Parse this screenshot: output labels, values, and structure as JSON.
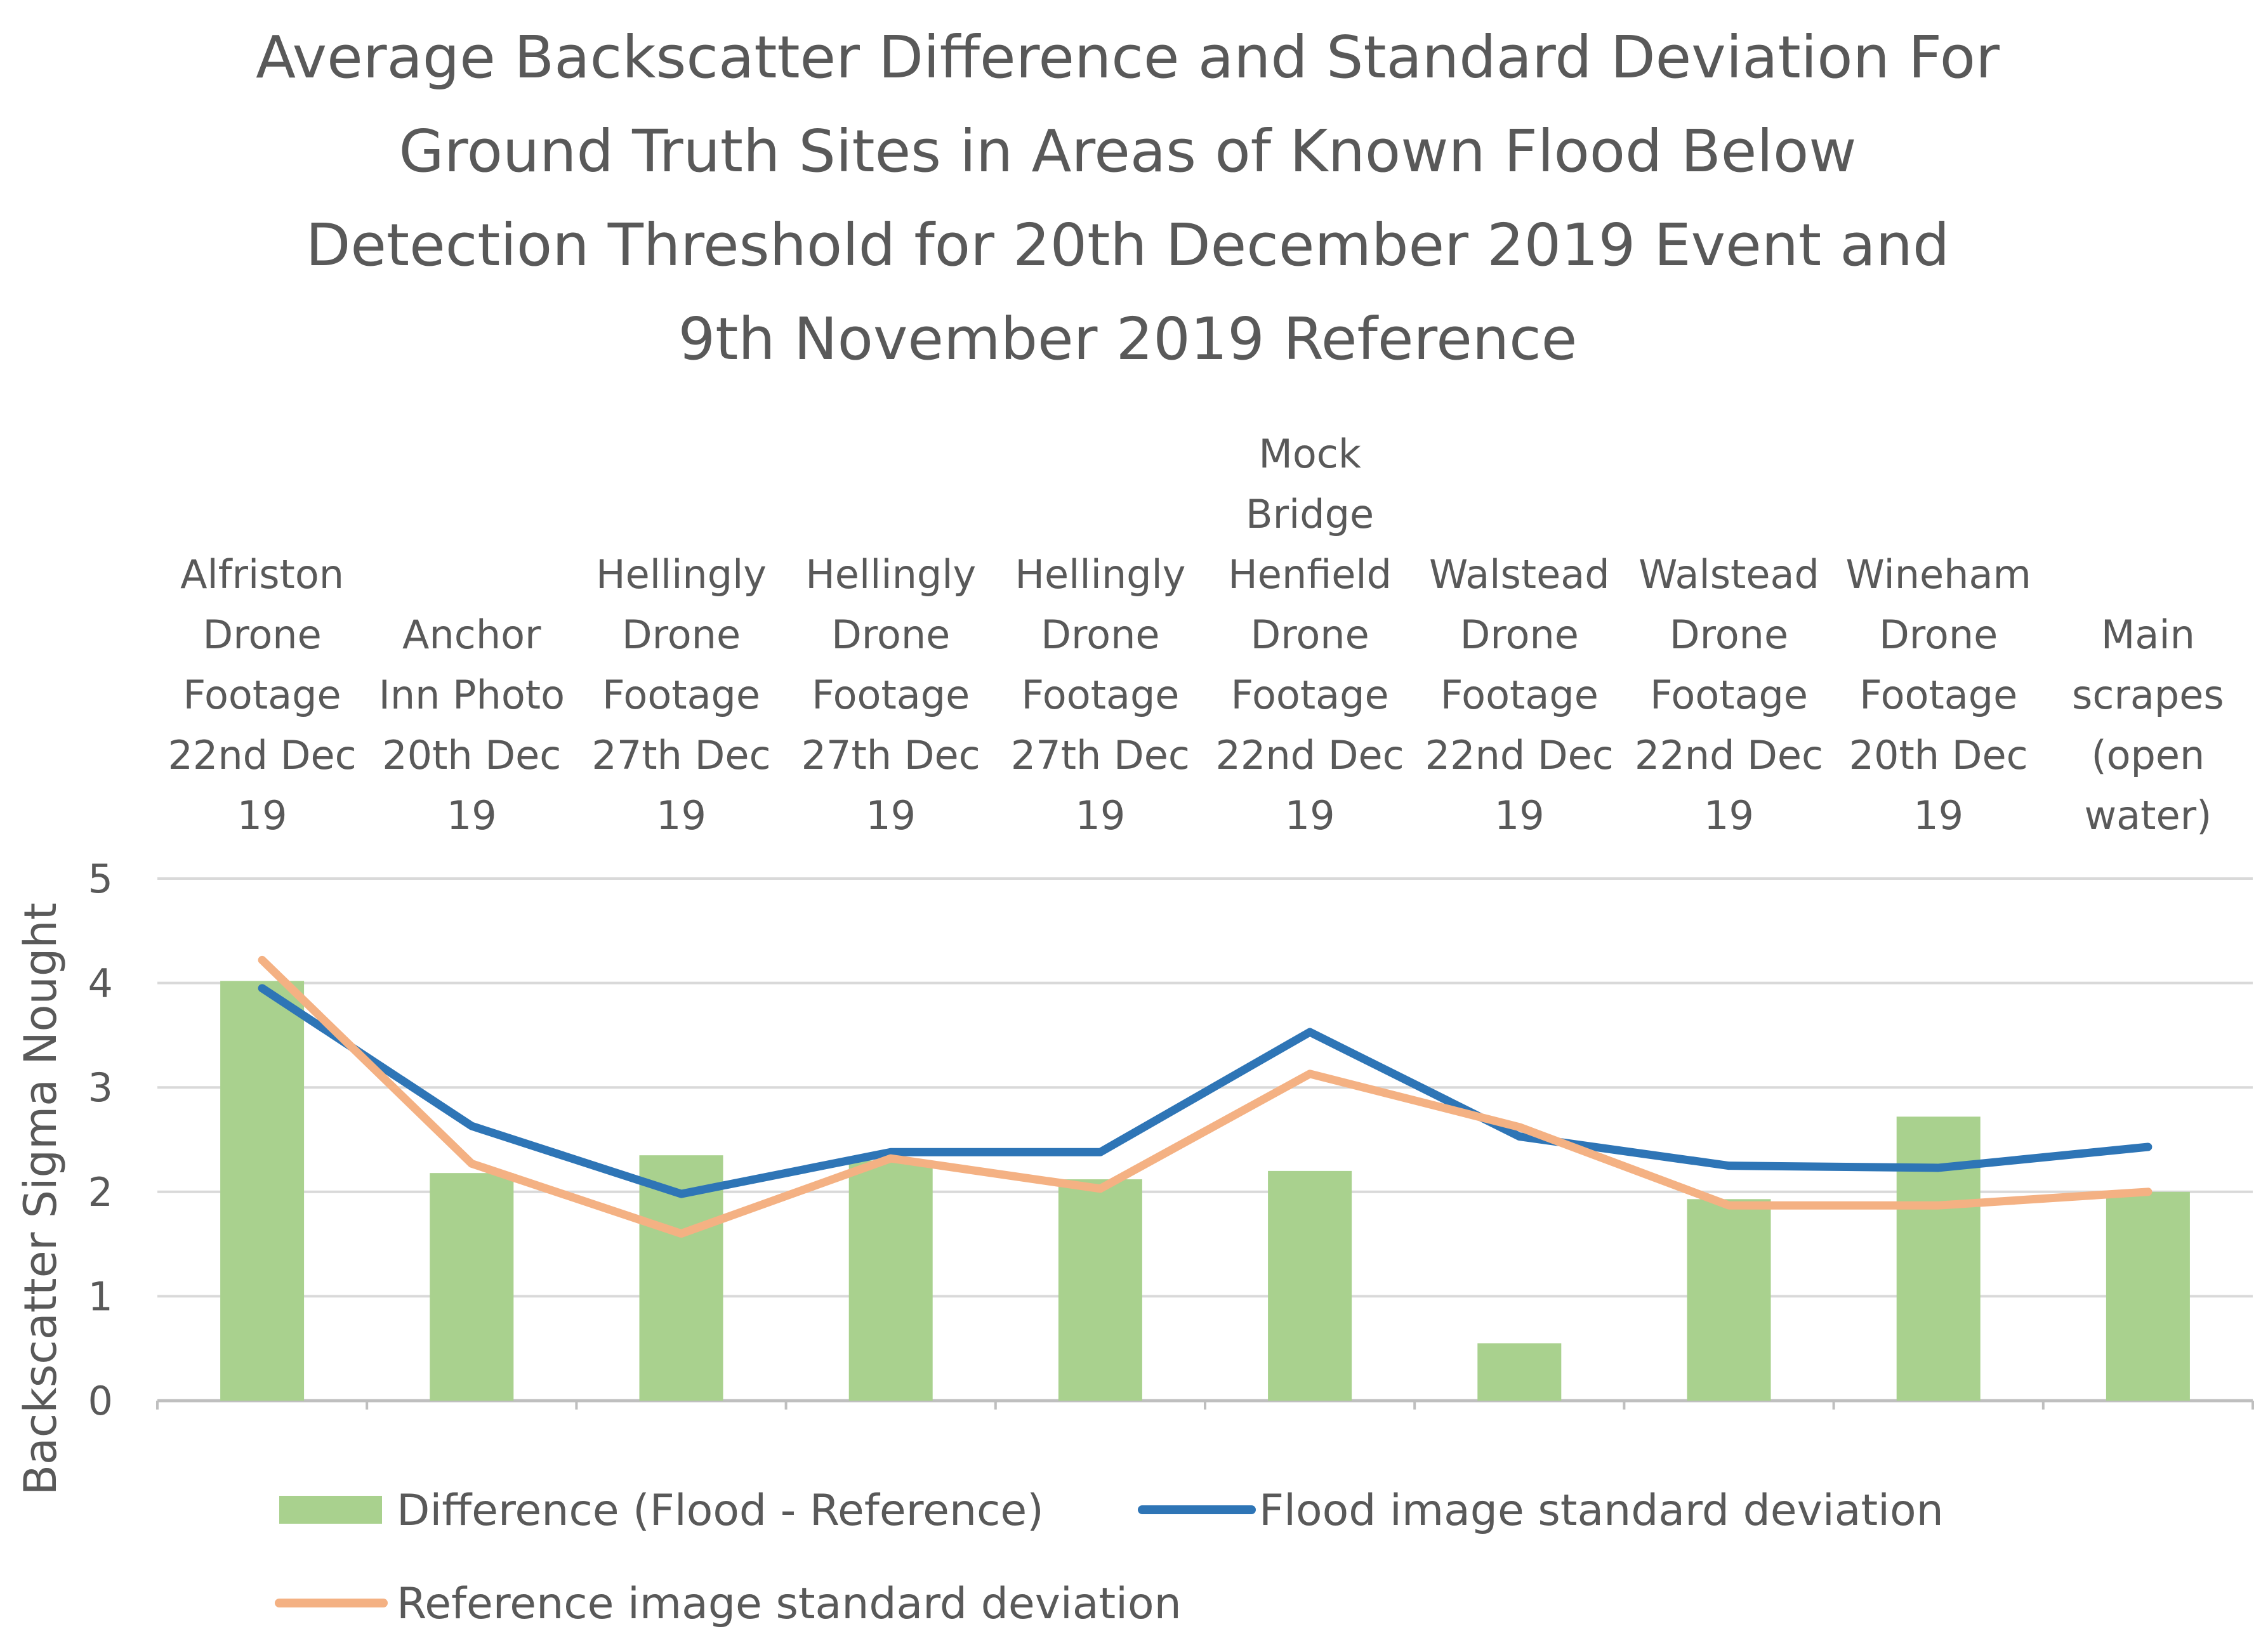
{
  "chart_data": {
    "type": "bar+line",
    "title_lines": [
      "Average Backscatter Difference and Standard Deviation For",
      "Ground Truth Sites in Areas of Known Flood Below",
      "Detection Threshold for 20th December 2019 Event and",
      "9th November 2019 Reference"
    ],
    "ylabel": "Backscatter Sigma Nought",
    "xlabel": "",
    "ylim": [
      0,
      5
    ],
    "yticks": [
      "0",
      "1",
      "2",
      "3",
      "4",
      "5"
    ],
    "grid": true,
    "legend_position": "bottom",
    "categories": [
      [
        "Alfriston",
        "Drone",
        "Footage",
        "22nd Dec",
        "19"
      ],
      [
        "Anchor",
        "Inn Photo",
        "20th Dec",
        "19"
      ],
      [
        "Hellingly",
        "Drone",
        "Footage",
        "27th Dec",
        "19"
      ],
      [
        "Hellingly",
        "Drone",
        "Footage",
        "27th Dec",
        "19"
      ],
      [
        "Hellingly",
        "Drone",
        "Footage",
        "27th Dec",
        "19"
      ],
      [
        "Mock",
        "Bridge",
        "Henfield",
        "Drone",
        "Footage",
        "22nd Dec",
        "19"
      ],
      [
        "Walstead",
        "Drone",
        "Footage",
        "22nd Dec",
        "19"
      ],
      [
        "Walstead",
        "Drone",
        "Footage",
        "22nd Dec",
        "19"
      ],
      [
        "Wineham",
        "Drone",
        "Footage",
        "20th Dec",
        "19"
      ],
      [
        "Main",
        "scrapes",
        "(open",
        "water)"
      ]
    ],
    "series": [
      {
        "name": "Difference (Flood - Reference)",
        "kind": "bar",
        "color": "#a9d18e",
        "values": [
          4.02,
          2.18,
          2.35,
          2.3,
          2.12,
          2.2,
          0.55,
          1.93,
          2.72,
          2.0
        ]
      },
      {
        "name": "Flood image standard deviation",
        "kind": "line",
        "color": "#2e75b6",
        "values": [
          3.95,
          2.63,
          1.98,
          2.38,
          2.38,
          3.53,
          2.53,
          2.25,
          2.23,
          2.43
        ]
      },
      {
        "name": "Reference image standard deviation",
        "kind": "line",
        "color": "#f4b183",
        "values": [
          4.22,
          2.27,
          1.6,
          2.32,
          2.03,
          3.13,
          2.62,
          1.87,
          1.87,
          2.0
        ]
      }
    ]
  }
}
